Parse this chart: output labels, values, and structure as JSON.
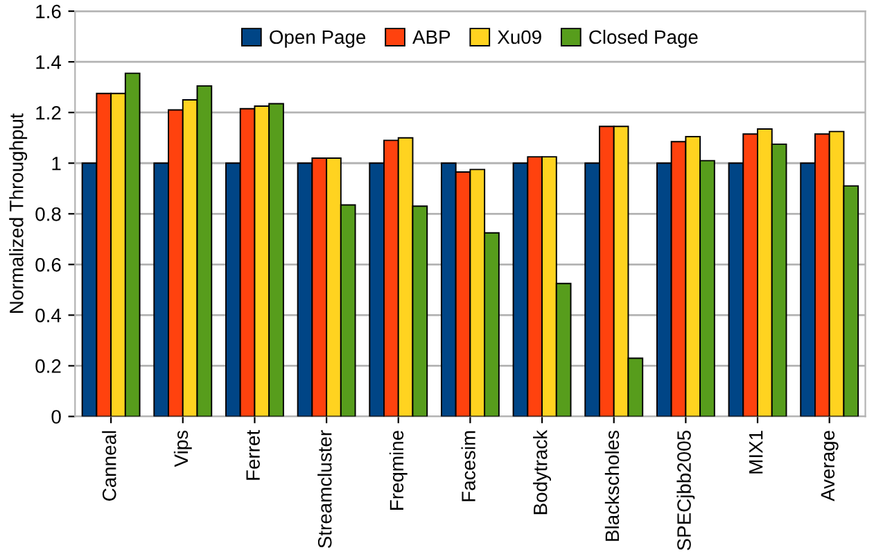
{
  "chart_data": {
    "type": "bar",
    "ylabel": "Normalized Throughput",
    "categories": [
      "Canneal",
      "Vips",
      "Ferret",
      "Streamcluster",
      "Freqmine",
      "Facesim",
      "Bodytrack",
      "Blackscholes",
      "SPECjbb2005",
      "MIX1",
      "Average"
    ],
    "series": [
      {
        "name": "Open Page",
        "color": "#004586",
        "values": [
          1,
          1,
          1,
          1,
          1,
          1,
          1,
          1,
          1,
          1,
          1
        ]
      },
      {
        "name": "ABP",
        "color": "#ff420e",
        "values": [
          1.275,
          1.21,
          1.215,
          1.02,
          1.09,
          0.965,
          1.025,
          1.145,
          1.085,
          1.115,
          1.115
        ]
      },
      {
        "name": "Xu09",
        "color": "#ffd320",
        "values": [
          1.275,
          1.25,
          1.225,
          1.02,
          1.1,
          0.975,
          1.025,
          1.145,
          1.105,
          1.135,
          1.125
        ]
      },
      {
        "name": "Closed Page",
        "color": "#579d1c",
        "values": [
          1.355,
          1.305,
          1.235,
          0.835,
          0.83,
          0.725,
          0.525,
          0.23,
          1.01,
          1.075,
          0.91
        ]
      }
    ],
    "ylim": [
      0,
      1.6
    ],
    "yticks": [
      0,
      0.2,
      0.4,
      0.6,
      0.8,
      1,
      1.2,
      1.4,
      1.6
    ],
    "grid": "y",
    "legend": "top"
  }
}
